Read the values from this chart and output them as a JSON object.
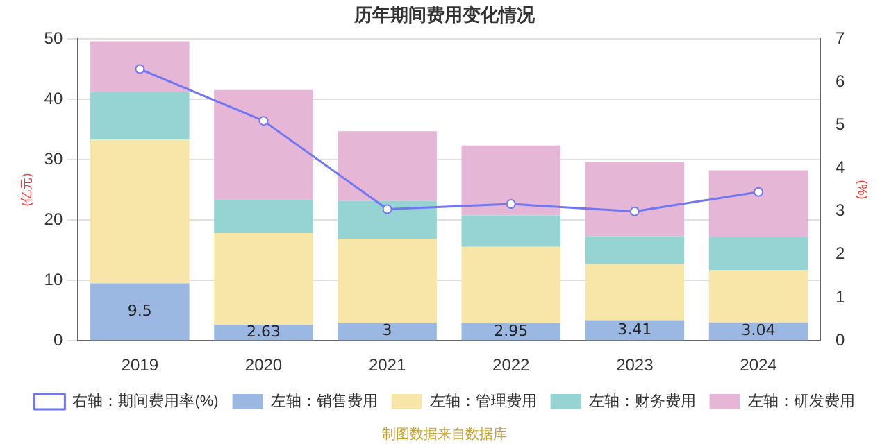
{
  "chart_data": {
    "type": "bar",
    "title": "历年期间费用变化情况",
    "ylabel": "(亿元)",
    "y2label": "(%)",
    "categories": [
      "2019",
      "2020",
      "2021",
      "2022",
      "2023",
      "2024"
    ],
    "stacked": true,
    "grid": "y",
    "legend": "bottom",
    "marker": "circle",
    "ylim": [
      0,
      50
    ],
    "yticks": [
      0,
      10,
      20,
      30,
      40,
      50
    ],
    "y2lim": [
      0,
      7
    ],
    "y2ticks": [
      0,
      1,
      2,
      3,
      4,
      5,
      6,
      7
    ],
    "series": [
      {
        "name": "左轴：销售费用",
        "color": "#9bb8e3",
        "values": [
          9.5,
          2.63,
          3,
          2.95,
          3.41,
          3.04
        ],
        "value_labels": [
          "9.5",
          "2.63",
          "3",
          "2.95",
          "3.41",
          "3.04"
        ]
      },
      {
        "name": "左轴：管理费用",
        "color": "#f7e6a8",
        "values": [
          23.8,
          15.2,
          13.9,
          12.6,
          9.3,
          8.7
        ]
      },
      {
        "name": "左轴：财务费用",
        "color": "#96d3d3",
        "values": [
          7.9,
          5.6,
          6.3,
          5.2,
          4.6,
          5.4
        ]
      },
      {
        "name": "左轴：研发费用",
        "color": "#e5b6d6",
        "values": [
          8.4,
          18.1,
          11.5,
          11.6,
          12.3,
          11.1
        ]
      },
      {
        "name": "右轴：期间费用率(%)",
        "type": "line",
        "axis": "y2",
        "color": "#7176f5",
        "values": [
          6.3,
          5.1,
          3.05,
          3.17,
          3.0,
          3.45
        ]
      }
    ],
    "annotations": [
      "制图数据来自数据库"
    ]
  }
}
